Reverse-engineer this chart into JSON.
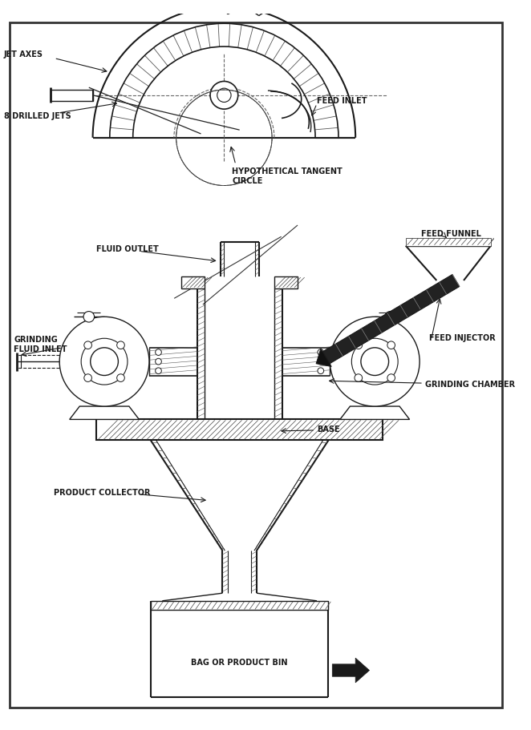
{
  "bg_color": "#ffffff",
  "line_color": "#1a1a1a",
  "border_color": "#333333",
  "labels": {
    "jet_axes": "JET AXES",
    "drilled_jets": "8 DRILLED JETS",
    "feed_inlet": "FEED INLET",
    "hyp_tangent": "HYPOTHETICAL TANGENT\nCIRCLE",
    "fluid_outlet": "FLUID OUTLET",
    "feed_funnel": "FEED FUNNEL",
    "grinding_fluid": "GRINDING\nFLUID INLET",
    "feed_injector": "FEED INJECTOR",
    "grinding_chamber": "GRINDING CHAMBER",
    "product_collector": "PRODUCT COLLECTOR",
    "base": "BASE",
    "bag_bin": "BAG OR PRODUCT BIN"
  },
  "font_size": 7.0,
  "fig_width": 6.62,
  "fig_height": 9.11
}
